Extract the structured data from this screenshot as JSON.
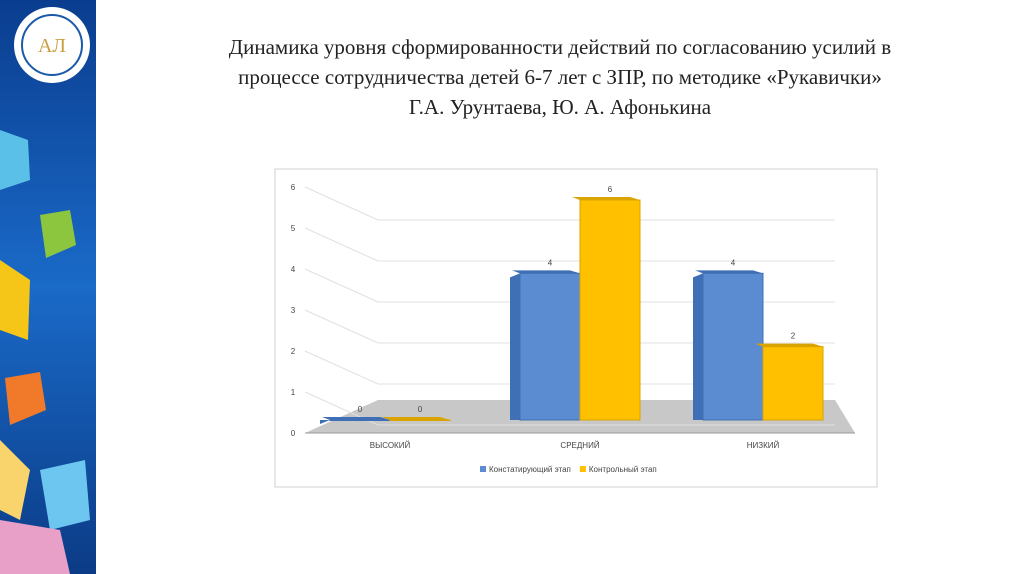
{
  "chart_data": {
    "type": "bar",
    "title": [
      "Динамика уровня сформированности действий по согласованию усилий в",
      "процессе сотрудничества детей 6-7 лет с ЗПР, по методике «Рукавички»",
      "Г.А. Урунтаева, Ю. А. Афонькина"
    ],
    "categories": [
      "ВЫСОКИЙ",
      "СРЕДНИЙ",
      "НИЗКИЙ"
    ],
    "series": [
      {
        "name": "Констатирующий этап",
        "color": "#5b8cd2",
        "values": [
          0,
          4,
          4
        ]
      },
      {
        "name": "Контрольный этап",
        "color": "#ffc000",
        "values": [
          0,
          6,
          2
        ]
      }
    ],
    "ylim": [
      0,
      6
    ],
    "yticks": [
      0,
      1,
      2,
      3,
      4,
      5,
      6
    ],
    "grid": true,
    "legend": "bottom"
  }
}
